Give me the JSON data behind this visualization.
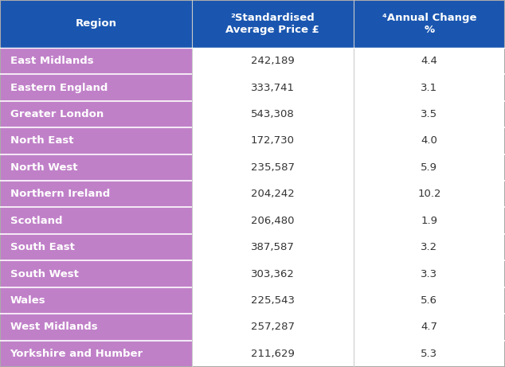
{
  "header_bg_color": "#1a56b0",
  "header_text_color": "#ffffff",
  "row_bg_purple": "#c080c8",
  "row_bg_white": "#ffffff",
  "cell_text_color_dark": "#1a56b0",
  "cell_text_color_black": "#333333",
  "outer_border_color": "#cccccc",
  "col_headers": [
    "Region",
    "²Standardised\nAverage Price £",
    "⁴Annual Change\n%"
  ],
  "regions": [
    "East Midlands",
    "Eastern England",
    "Greater London",
    "North East",
    "North West",
    "Northern Ireland",
    "Scotland",
    "South East",
    "South West",
    "Wales",
    "West Midlands",
    "Yorkshire and Humber"
  ],
  "prices": [
    "242,189",
    "333,741",
    "543,308",
    "172,730",
    "235,587",
    "204,242",
    "206,480",
    "387,587",
    "303,362",
    "225,543",
    "257,287",
    "211,629"
  ],
  "changes": [
    "4.4",
    "3.1",
    "3.5",
    "4.0",
    "5.9",
    "10.2",
    "1.9",
    "3.2",
    "3.3",
    "5.6",
    "4.7",
    "5.3"
  ],
  "fig_width": 6.34,
  "fig_height": 4.61,
  "header_fontsize": 9.5,
  "cell_fontsize": 9.5
}
